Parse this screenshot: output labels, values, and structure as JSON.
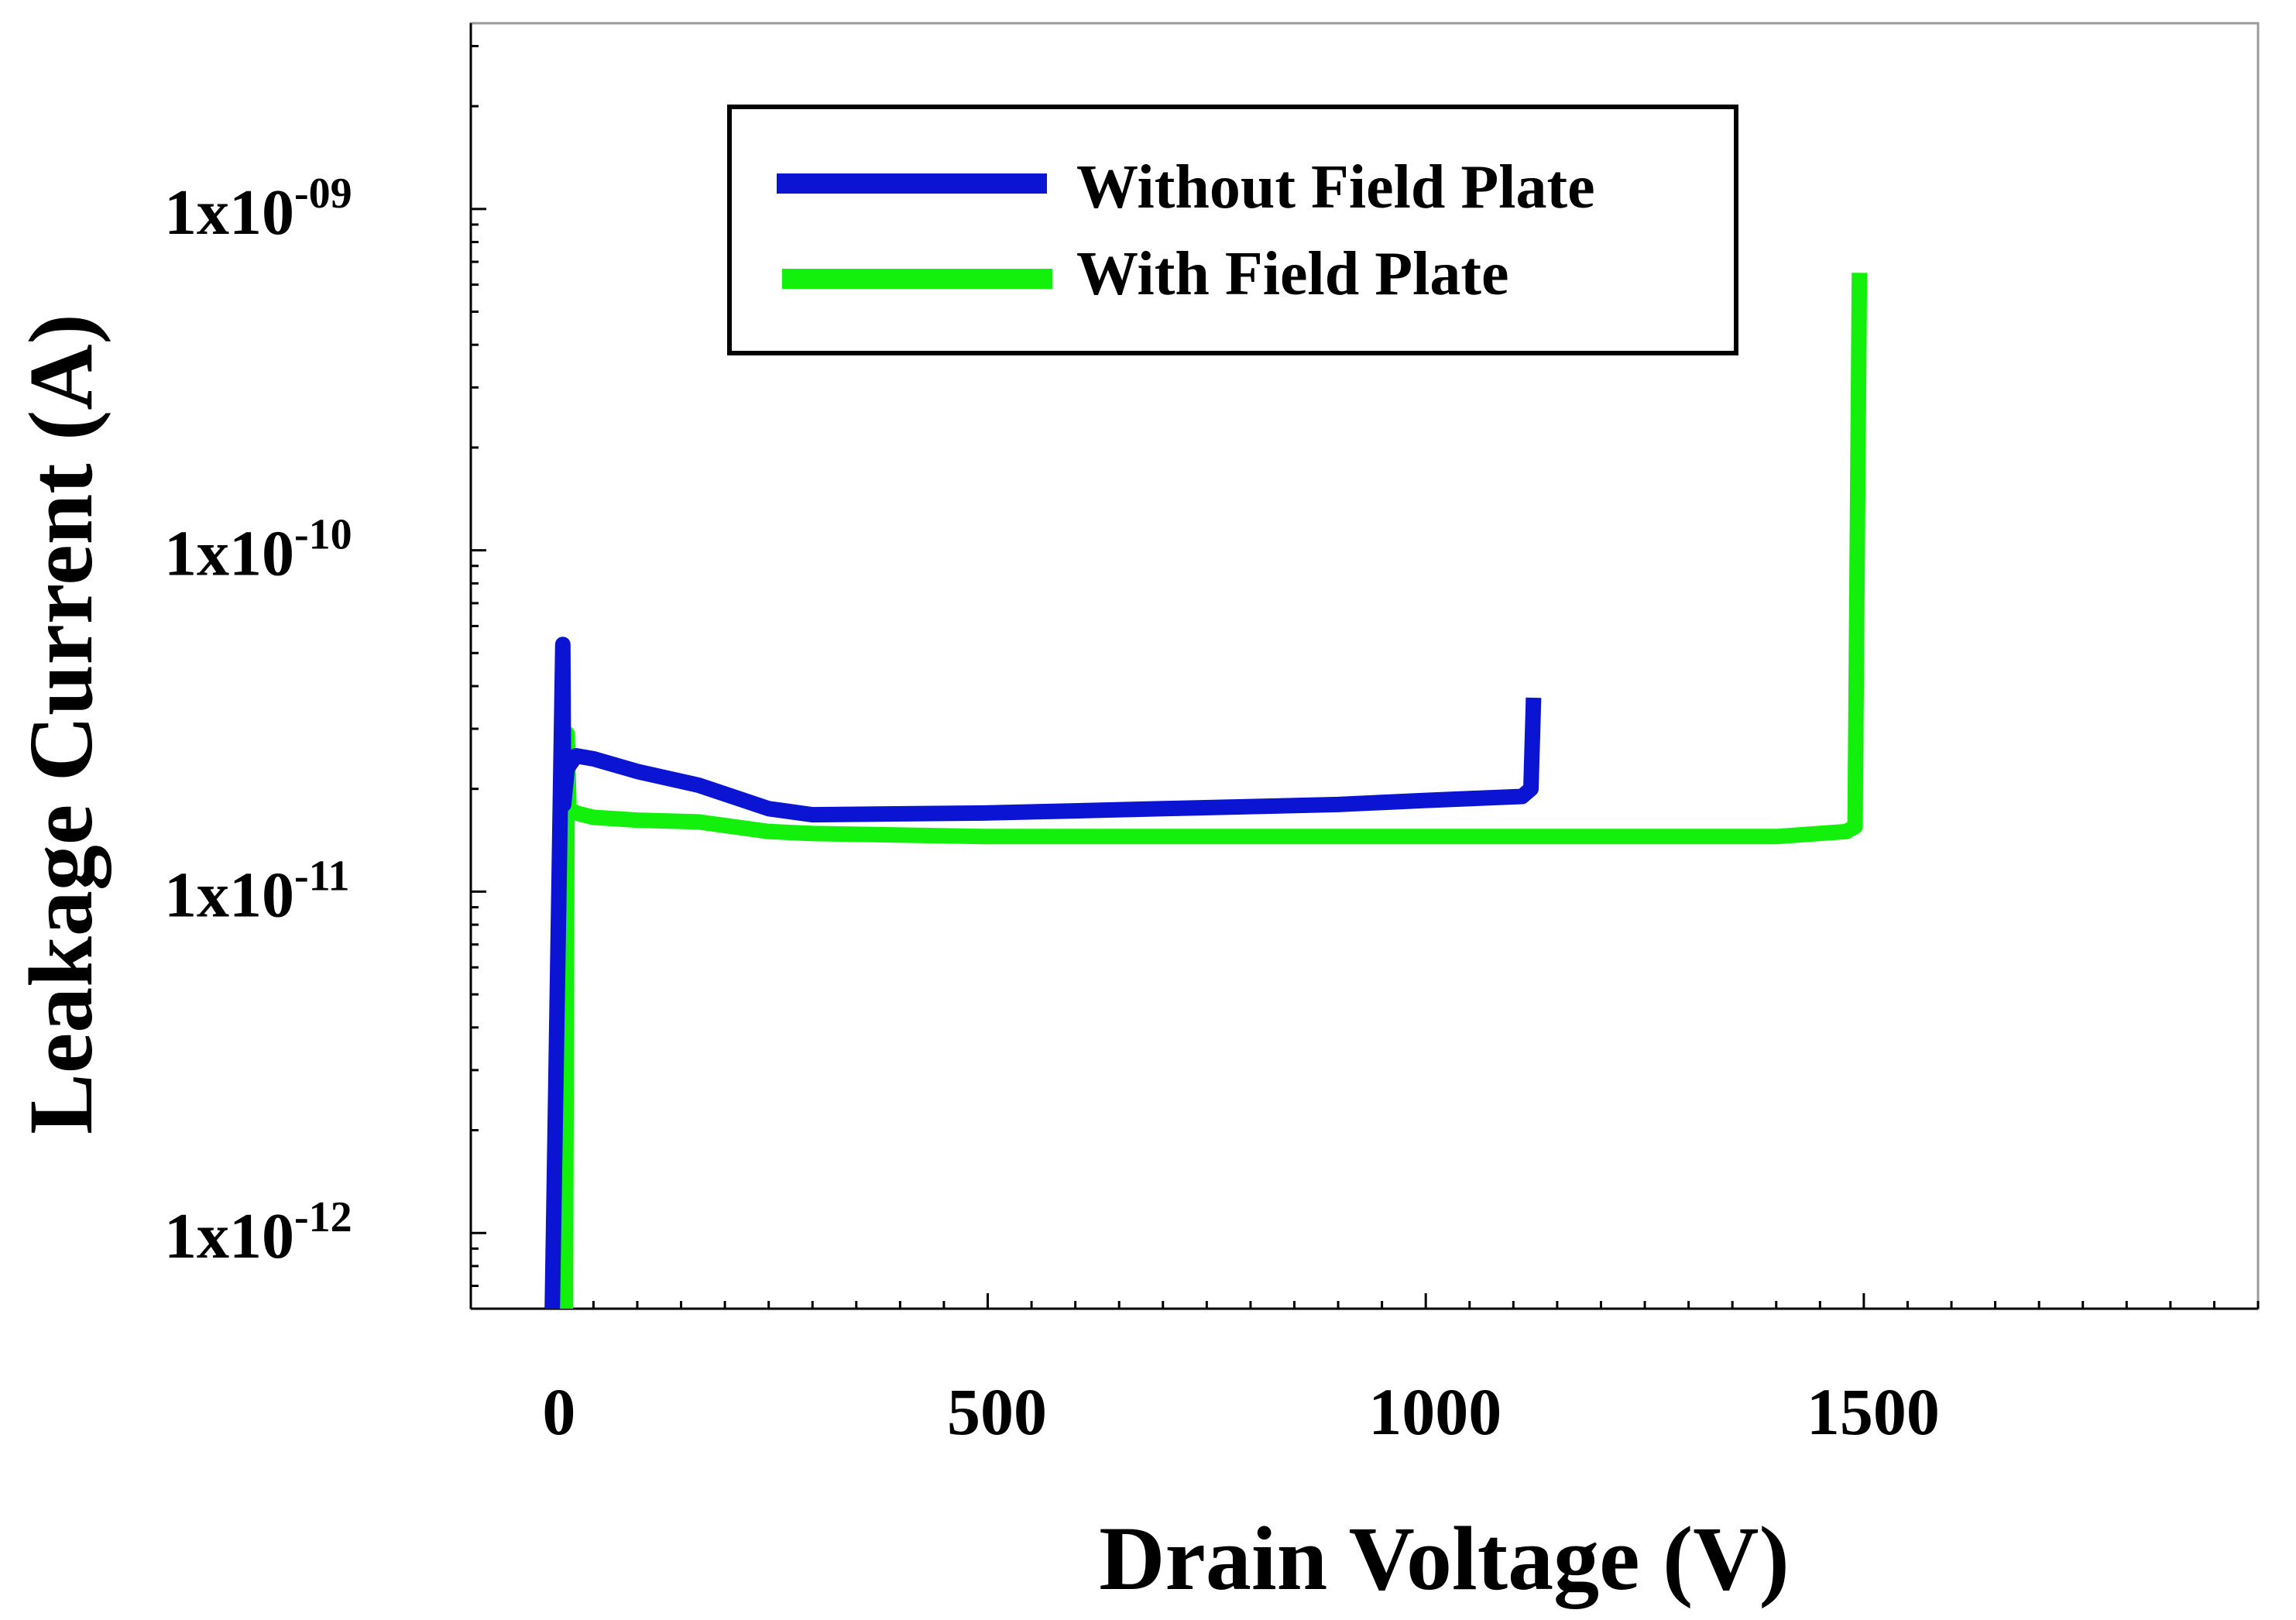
{
  "chart_data": {
    "type": "line",
    "title": "",
    "xlabel": "Drain Voltage (V)",
    "ylabel": "Leakage Current (A)",
    "xlim": [
      -90,
      1950
    ],
    "ylim": [
      6e-13,
      3.5e-09
    ],
    "yscale": "log",
    "xticks": [
      {
        "value": 0,
        "label": "0"
      },
      {
        "value": 500,
        "label": "500"
      },
      {
        "value": 1000,
        "label": "1000"
      },
      {
        "value": 1500,
        "label": "1500"
      }
    ],
    "yticks": [
      {
        "value": 1e-12,
        "mantissa": "1x10",
        "exponent": "-12"
      },
      {
        "value": 1e-11,
        "mantissa": "1x10",
        "exponent": "-11"
      },
      {
        "value": 1e-10,
        "mantissa": "1x10",
        "exponent": "-10"
      },
      {
        "value": 1e-09,
        "mantissa": "1x10",
        "exponent": "-09"
      }
    ],
    "legend_position": "top-center",
    "series": [
      {
        "name": "Without Field Plate",
        "color": "#0a14d2",
        "x": [
          3,
          15,
          16,
          20,
          30,
          50,
          100,
          170,
          250,
          300,
          500,
          700,
          900,
          1000,
          1110,
          1120,
          1123
        ],
        "y": [
          6e-13,
          5.3e-11,
          1.8e-11,
          2.3e-11,
          2.5e-11,
          2.45e-11,
          2.25e-11,
          2.05e-11,
          1.75e-11,
          1.68e-11,
          1.7e-11,
          1.75e-11,
          1.8e-11,
          1.85e-11,
          1.9e-11,
          2e-11,
          3.7e-11
        ]
      },
      {
        "name": "With Field Plate",
        "color": "#12f00c",
        "x": [
          18,
          20,
          22,
          30,
          50,
          100,
          170,
          250,
          300,
          500,
          1000,
          1400,
          1480,
          1490,
          1495
        ],
        "y": [
          6e-13,
          2.9e-11,
          1.75e-11,
          1.7e-11,
          1.65e-11,
          1.62e-11,
          1.6e-11,
          1.5e-11,
          1.48e-11,
          1.45e-11,
          1.45e-11,
          1.45e-11,
          1.5e-11,
          1.55e-11,
          6.5e-10
        ]
      }
    ]
  }
}
